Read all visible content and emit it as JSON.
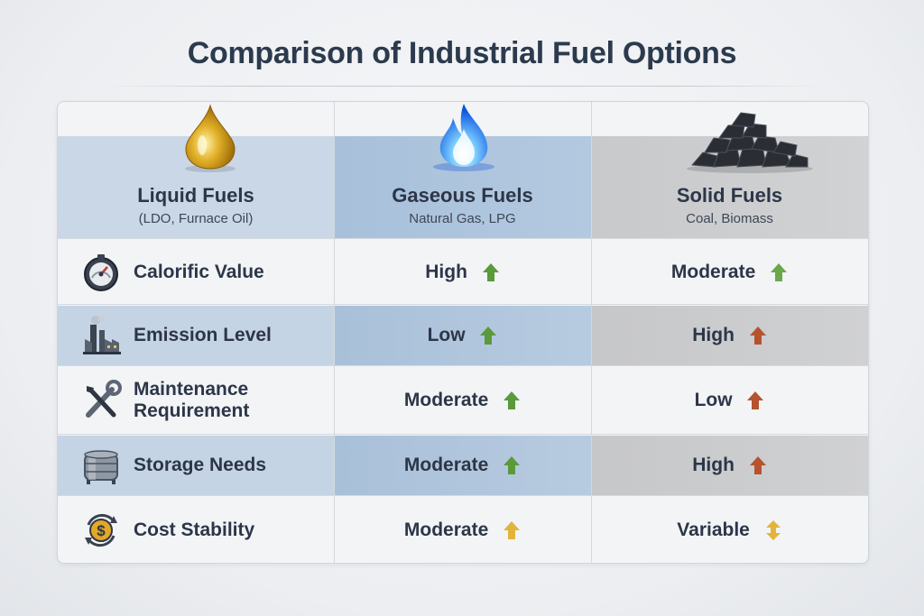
{
  "title": "Comparison of Industrial Fuel Options",
  "columns": [
    {
      "name": "Liquid Fuels",
      "sub": "(LDO, Furnace Oil)",
      "icon": "oil-drop-icon"
    },
    {
      "name": "Gaseous Fuels",
      "sub": "Natural Gas, LPG",
      "icon": "blue-flame-icon"
    },
    {
      "name": "Solid Fuels",
      "sub": "Coal, Biomass",
      "icon": "coal-pile-icon"
    }
  ],
  "rows": [
    {
      "label": "Calorific Value",
      "icon": "gauge-icon",
      "gas": "High",
      "gas_arrow": "green-up-arrow",
      "solid": "Moderate",
      "solid_arrow": "green-up-arrow"
    },
    {
      "label": "Emission Level",
      "icon": "factory-icon",
      "gas": "Low",
      "gas_arrow": "green-up-arrow",
      "solid": "High",
      "solid_arrow": "red-up-arrow"
    },
    {
      "label_line1": "Maintenance",
      "label_line2": "Requirement",
      "icon": "tools-icon",
      "gas": "Moderate",
      "gas_arrow": "green-up-arrow",
      "solid": "Low",
      "solid_arrow": "red-up-arrow"
    },
    {
      "label": "Storage Needs",
      "icon": "storage-tank-icon",
      "gas": "Moderate",
      "gas_arrow": "green-up-arrow",
      "solid": "High",
      "solid_arrow": "red-up-arrow"
    },
    {
      "label": "Cost Stability",
      "icon": "dollar-cycle-icon",
      "gas": "Moderate",
      "gas_arrow": "yellow-up-arrow",
      "solid": "Variable",
      "solid_arrow": "yellow-up-down-arrow"
    }
  ],
  "colors": {
    "green_arrow": "#5a9a3a",
    "red_arrow": "#b5532e",
    "yellow_arrow": "#e3b43c",
    "title": "#2c3a4d"
  }
}
